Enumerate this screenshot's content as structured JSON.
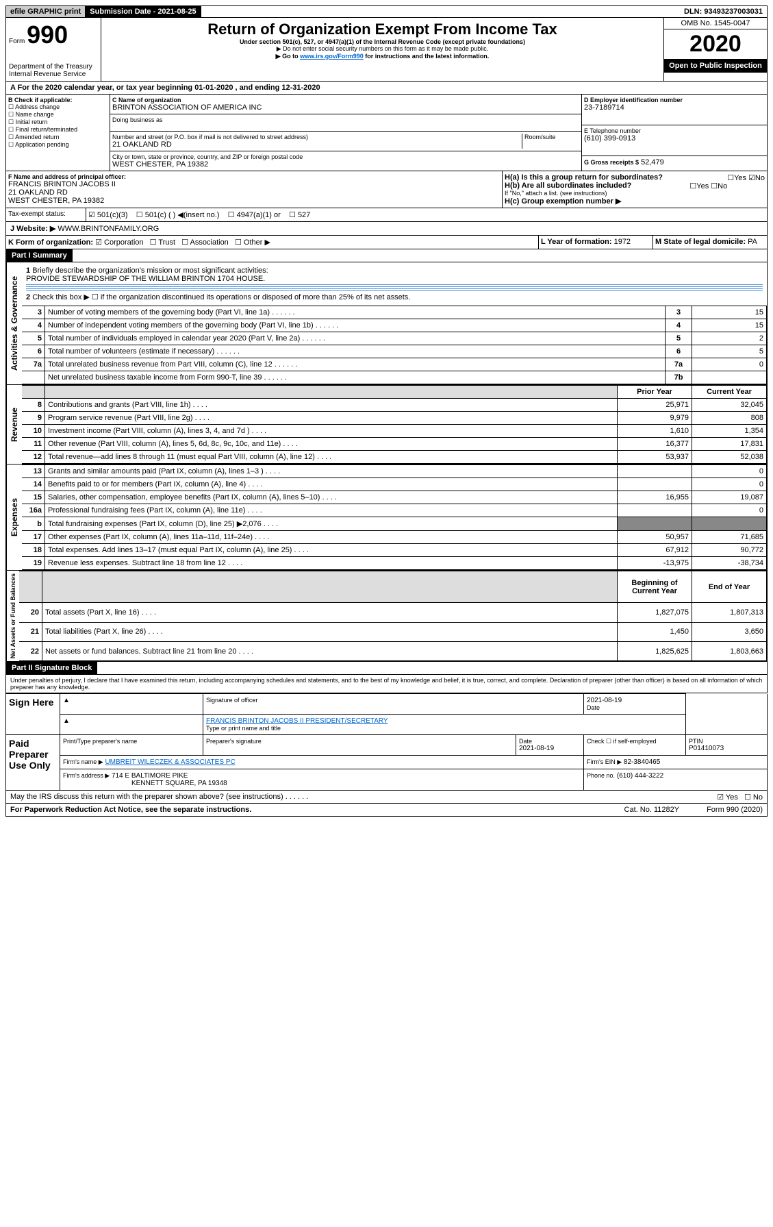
{
  "header": {
    "efile": "efile GRAPHIC print",
    "submission": "Submission Date - 2021-08-25",
    "dln": "DLN: 93493237003031",
    "omb": "OMB No. 1545-0047",
    "form_label": "Form",
    "form_num": "990",
    "title": "Return of Organization Exempt From Income Tax",
    "subtitle": "Under section 501(c), 527, or 4947(a)(1) of the Internal Revenue Code (except private foundations)",
    "note1": "▶ Do not enter social security numbers on this form as it may be made public.",
    "note2": "▶ Go to www.irs.gov/Form990 for instructions and the latest information.",
    "dept": "Department of the Treasury\nInternal Revenue Service",
    "year": "2020",
    "open": "Open to Public Inspection"
  },
  "a": {
    "line": "A For the 2020 calendar year, or tax year beginning 01-01-2020    , and ending 12-31-2020"
  },
  "b": {
    "label": "B Check if applicable:",
    "opts": [
      "Address change",
      "Name change",
      "Initial return",
      "Final return/terminated",
      "Amended return",
      "Application pending"
    ]
  },
  "c": {
    "name_label": "C Name of organization",
    "name": "BRINTON ASSOCIATION OF AMERICA INC",
    "dba_label": "Doing business as",
    "addr_label": "Number and street (or P.O. box if mail is not delivered to street address)",
    "addr": "21 OAKLAND RD",
    "room_label": "Room/suite",
    "city_label": "City or town, state or province, country, and ZIP or foreign postal code",
    "city": "WEST CHESTER, PA  19382"
  },
  "d": {
    "label": "D Employer identification number",
    "value": "23-7189714"
  },
  "e": {
    "label": "E Telephone number",
    "value": "(610) 399-0913"
  },
  "g": {
    "label": "G Gross receipts $",
    "value": "52,479"
  },
  "f": {
    "label": "F Name and address of principal officer:",
    "name": "FRANCIS BRINTON JACOBS II",
    "addr": "21 OAKLAND RD",
    "city": "WEST CHESTER, PA  19382"
  },
  "h": {
    "a": "H(a) Is this a group return for subordinates?",
    "b": "H(b) Are all subordinates included?",
    "note": "If \"No,\" attach a list. (see instructions)",
    "c": "H(c) Group exemption number ▶"
  },
  "i": {
    "label": "Tax-exempt status:",
    "opts": [
      "501(c)(3)",
      "501(c) (  ) ◀(insert no.)",
      "4947(a)(1) or",
      "527"
    ]
  },
  "j": {
    "label": "J   Website: ▶",
    "value": "WWW.BRINTONFAMILY.ORG"
  },
  "k": {
    "label": "K Form of organization:",
    "opts": [
      "Corporation",
      "Trust",
      "Association",
      "Other ▶"
    ]
  },
  "l": {
    "label": "L Year of formation:",
    "value": "1972"
  },
  "m": {
    "label": "M State of legal domicile:",
    "value": "PA"
  },
  "part1": {
    "title": "Part I      Summary",
    "sec_gov": "Activities & Governance",
    "sec_rev": "Revenue",
    "sec_exp": "Expenses",
    "sec_net": "Net Assets or Fund Balances",
    "q1": "Briefly describe the organization's mission or most significant activities:",
    "mission": "PROVIDE STEWARDSHIP OF THE WILLIAM BRINTON 1704 HOUSE.",
    "q2": "Check this box ▶ ☐  if the organization discontinued its operations or disposed of more than 25% of its net assets.",
    "rows_gov": [
      {
        "n": "3",
        "t": "Number of voting members of the governing body (Part VI, line 1a)",
        "k": "3",
        "v": "15"
      },
      {
        "n": "4",
        "t": "Number of independent voting members of the governing body (Part VI, line 1b)",
        "k": "4",
        "v": "15"
      },
      {
        "n": "5",
        "t": "Total number of individuals employed in calendar year 2020 (Part V, line 2a)",
        "k": "5",
        "v": "2"
      },
      {
        "n": "6",
        "t": "Total number of volunteers (estimate if necessary)",
        "k": "6",
        "v": "5"
      },
      {
        "n": "7a",
        "t": "Total unrelated business revenue from Part VIII, column (C), line 12",
        "k": "7a",
        "v": "0"
      },
      {
        "n": "",
        "t": "Net unrelated business taxable income from Form 990-T, line 39",
        "k": "7b",
        "v": ""
      }
    ],
    "hdr_prior": "Prior Year",
    "hdr_curr": "Current Year",
    "rows_rev": [
      {
        "n": "8",
        "t": "Contributions and grants (Part VIII, line 1h)",
        "p": "25,971",
        "c": "32,045"
      },
      {
        "n": "9",
        "t": "Program service revenue (Part VIII, line 2g)",
        "p": "9,979",
        "c": "808"
      },
      {
        "n": "10",
        "t": "Investment income (Part VIII, column (A), lines 3, 4, and 7d )",
        "p": "1,610",
        "c": "1,354"
      },
      {
        "n": "11",
        "t": "Other revenue (Part VIII, column (A), lines 5, 6d, 8c, 9c, 10c, and 11e)",
        "p": "16,377",
        "c": "17,831"
      },
      {
        "n": "12",
        "t": "Total revenue—add lines 8 through 11 (must equal Part VIII, column (A), line 12)",
        "p": "53,937",
        "c": "52,038"
      }
    ],
    "rows_exp": [
      {
        "n": "13",
        "t": "Grants and similar amounts paid (Part IX, column (A), lines 1–3 )",
        "p": "",
        "c": "0"
      },
      {
        "n": "14",
        "t": "Benefits paid to or for members (Part IX, column (A), line 4)",
        "p": "",
        "c": "0"
      },
      {
        "n": "15",
        "t": "Salaries, other compensation, employee benefits (Part IX, column (A), lines 5–10)",
        "p": "16,955",
        "c": "19,087"
      },
      {
        "n": "16a",
        "t": "Professional fundraising fees (Part IX, column (A), line 11e)",
        "p": "",
        "c": "0"
      },
      {
        "n": "b",
        "t": "Total fundraising expenses (Part IX, column (D), line 25) ▶2,076",
        "p": "—",
        "c": "—"
      },
      {
        "n": "17",
        "t": "Other expenses (Part IX, column (A), lines 11a–11d, 11f–24e)",
        "p": "50,957",
        "c": "71,685"
      },
      {
        "n": "18",
        "t": "Total expenses. Add lines 13–17 (must equal Part IX, column (A), line 25)",
        "p": "67,912",
        "c": "90,772"
      },
      {
        "n": "19",
        "t": "Revenue less expenses. Subtract line 18 from line 12",
        "p": "-13,975",
        "c": "-38,734"
      }
    ],
    "hdr_beg": "Beginning of Current Year",
    "hdr_end": "End of Year",
    "rows_net": [
      {
        "n": "20",
        "t": "Total assets (Part X, line 16)",
        "p": "1,827,075",
        "c": "1,807,313"
      },
      {
        "n": "21",
        "t": "Total liabilities (Part X, line 26)",
        "p": "1,450",
        "c": "3,650"
      },
      {
        "n": "22",
        "t": "Net assets or fund balances. Subtract line 21 from line 20",
        "p": "1,825,625",
        "c": "1,803,663"
      }
    ]
  },
  "part2": {
    "title": "Part II      Signature Block",
    "decl": "Under penalties of perjury, I declare that I have examined this return, including accompanying schedules and statements, and to the best of my knowledge and belief, it is true, correct, and complete. Declaration of preparer (other than officer) is based on all information of which preparer has any knowledge.",
    "sign_here": "Sign Here",
    "sig_officer": "Signature of officer",
    "sig_date": "2021-08-19",
    "date_lbl": "Date",
    "officer_name": "FRANCIS BRINTON JACOBS II  PRESIDENT/SECRETARY",
    "type_name": "Type or print name and title",
    "paid": "Paid Preparer Use Only",
    "prep_name_lbl": "Print/Type preparer's name",
    "prep_sig_lbl": "Preparer's signature",
    "prep_date": "2021-08-19",
    "check_self": "Check ☐ if self-employed",
    "ptin_lbl": "PTIN",
    "ptin": "P01410073",
    "firm_name_lbl": "Firm's name   ▶",
    "firm_name": "UMBREIT WILECZEK & ASSOCIATES PC",
    "firm_ein_lbl": "Firm's EIN ▶",
    "firm_ein": "82-3840465",
    "firm_addr_lbl": "Firm's address ▶",
    "firm_addr": "714 E BALTIMORE PIKE",
    "firm_city": "KENNETT SQUARE, PA  19348",
    "phone_lbl": "Phone no.",
    "phone": "(610) 444-3222",
    "discuss": "May the IRS discuss this return with the preparer shown above? (see instructions)",
    "pra": "For Paperwork Reduction Act Notice, see the separate instructions.",
    "cat": "Cat. No. 11282Y",
    "form_foot": "Form 990 (2020)"
  }
}
